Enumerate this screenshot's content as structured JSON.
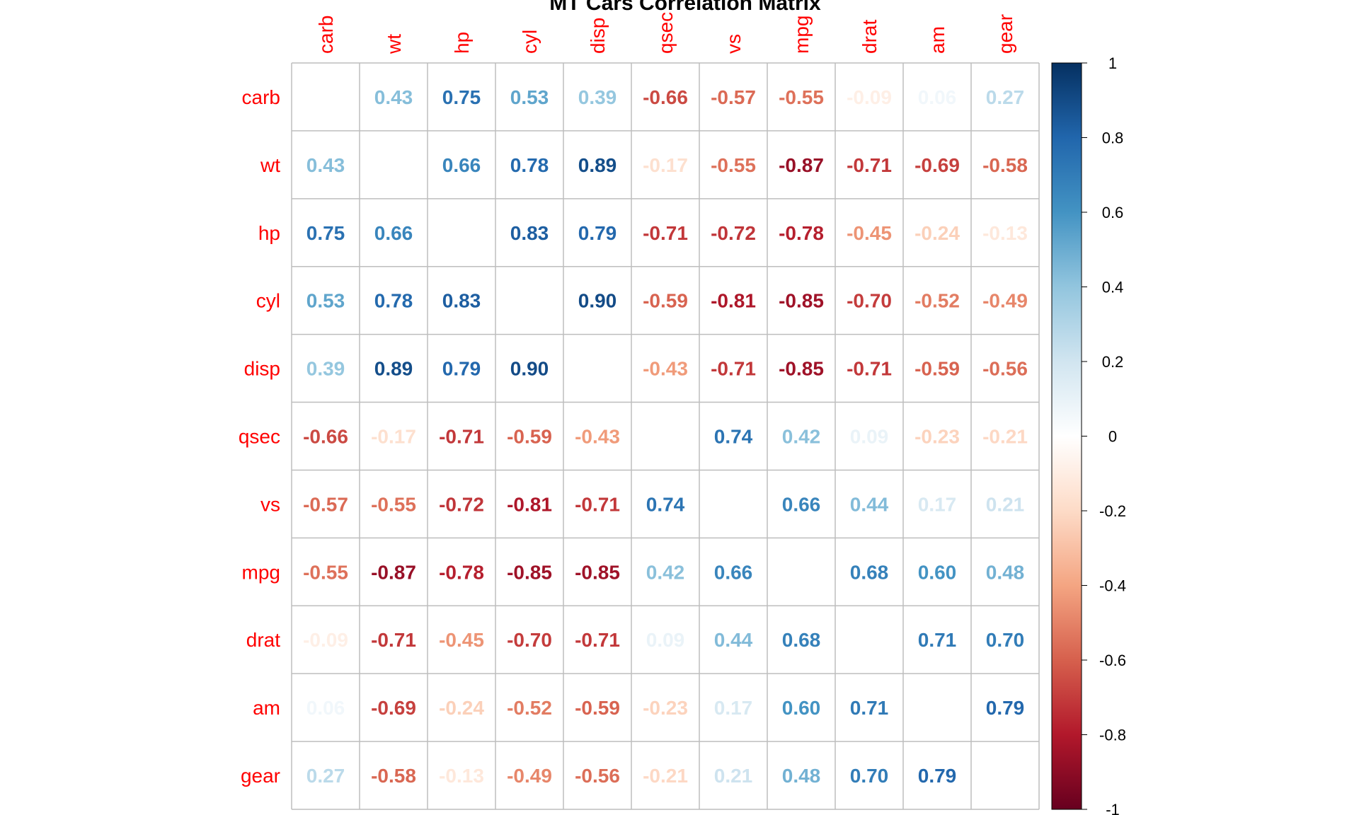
{
  "chart_data": {
    "type": "heatmap",
    "title": "MT Cars Correlation Matrix",
    "variables": [
      "carb",
      "wt",
      "hp",
      "cyl",
      "disp",
      "qsec",
      "vs",
      "mpg",
      "drat",
      "am",
      "gear"
    ],
    "matrix": [
      [
        null,
        0.43,
        0.75,
        0.53,
        0.39,
        -0.66,
        -0.57,
        -0.55,
        -0.09,
        0.06,
        0.27
      ],
      [
        0.43,
        null,
        0.66,
        0.78,
        0.89,
        -0.17,
        -0.55,
        -0.87,
        -0.71,
        -0.69,
        -0.58
      ],
      [
        0.75,
        0.66,
        null,
        0.83,
        0.79,
        -0.71,
        -0.72,
        -0.78,
        -0.45,
        -0.24,
        -0.13
      ],
      [
        0.53,
        0.78,
        0.83,
        null,
        0.9,
        -0.59,
        -0.81,
        -0.85,
        -0.7,
        -0.52,
        -0.49
      ],
      [
        0.39,
        0.89,
        0.79,
        0.9,
        null,
        -0.43,
        -0.71,
        -0.85,
        -0.71,
        -0.59,
        -0.56
      ],
      [
        -0.66,
        -0.17,
        -0.71,
        -0.59,
        -0.43,
        null,
        0.74,
        0.42,
        0.09,
        -0.23,
        -0.21
      ],
      [
        -0.57,
        -0.55,
        -0.72,
        -0.81,
        -0.71,
        0.74,
        null,
        0.66,
        0.44,
        0.17,
        0.21
      ],
      [
        -0.55,
        -0.87,
        -0.78,
        -0.85,
        -0.85,
        0.42,
        0.66,
        null,
        0.68,
        0.6,
        0.48
      ],
      [
        -0.09,
        -0.71,
        -0.45,
        -0.7,
        -0.71,
        0.09,
        0.44,
        0.68,
        null,
        0.71,
        0.7
      ],
      [
        0.06,
        -0.69,
        -0.24,
        -0.52,
        -0.59,
        -0.23,
        0.17,
        0.6,
        0.71,
        null,
        0.79
      ],
      [
        0.27,
        -0.58,
        -0.13,
        -0.49,
        -0.56,
        -0.21,
        0.21,
        0.48,
        0.7,
        0.79,
        null
      ]
    ],
    "color_scale": {
      "min": -1,
      "max": 1,
      "ticks": [
        1,
        0.8,
        0.6,
        0.4,
        0.2,
        0,
        -0.2,
        -0.4,
        -0.6,
        -0.8,
        -1
      ],
      "tick_labels": [
        "1",
        "0.8",
        "0.6",
        "0.4",
        "0.2",
        "0",
        "-0.2",
        "-0.4",
        "-0.6",
        "-0.8",
        "-1"
      ],
      "stops": [
        "#67001F",
        "#B2182B",
        "#D6604D",
        "#F4A582",
        "#FDDBC7",
        "#FFFFFF",
        "#D1E5F0",
        "#92C5DE",
        "#4393C3",
        "#2166AC",
        "#053061"
      ]
    },
    "label_color": "#ff0000",
    "grid_color": "#bebebe",
    "legend_position": "right"
  }
}
